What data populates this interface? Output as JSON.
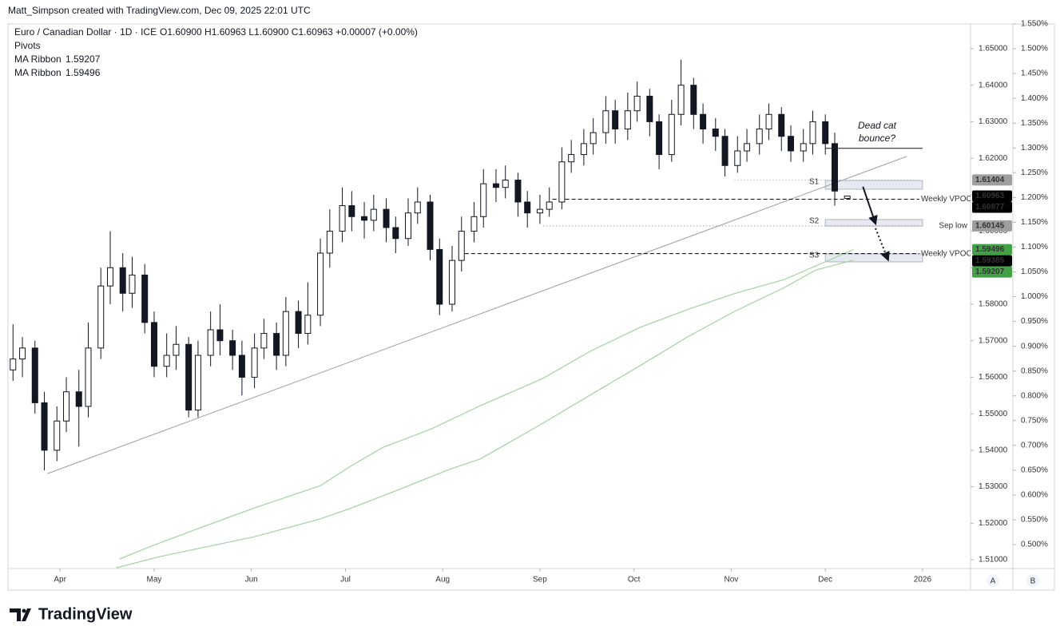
{
  "chart_data": {
    "type": "candlestick",
    "credit": "Matt_Simpson created with TradingView.com, Dec 09, 2025 22:01 UTC",
    "title": "Euro / Canadian Dollar · 1D · ICE",
    "ohlc_text": "O1.60900 H1.60963 L1.60900 C1.60963 +0.00007 (+0.00%)",
    "indicators": [
      "Pivots"
    ],
    "logo": "TradingView",
    "axis_buttons": [
      "A",
      "B"
    ],
    "xlim": [
      74.4,
      381.3
    ],
    "xticks": [
      {
        "value": 91,
        "label": "Apr"
      },
      {
        "value": 121,
        "label": "May"
      },
      {
        "value": 152,
        "label": "Jun"
      },
      {
        "value": 182,
        "label": "Jul"
      },
      {
        "value": 213,
        "label": "Aug"
      },
      {
        "value": 244,
        "label": "Sep"
      },
      {
        "value": 274,
        "label": "Oct"
      },
      {
        "value": 305,
        "label": "Nov"
      },
      {
        "value": 335,
        "label": "Dec"
      },
      {
        "value": 366,
        "label": "2026"
      }
    ],
    "ylim": [
      1.50759,
      1.65678
    ],
    "yticks": [
      {
        "value": 1.51,
        "label": "1.51000"
      },
      {
        "value": 1.52,
        "label": "1.52000"
      },
      {
        "value": 1.53,
        "label": "1.53000"
      },
      {
        "value": 1.54,
        "label": "1.54000"
      },
      {
        "value": 1.55,
        "label": "1.55000"
      },
      {
        "value": 1.56,
        "label": "1.56000"
      },
      {
        "value": 1.57,
        "label": "1.57000"
      },
      {
        "value": 1.58,
        "label": "1.58000"
      },
      {
        "value": 1.59,
        "label": "1.59000"
      },
      {
        "value": 1.6,
        "label": "1.60000"
      },
      {
        "value": 1.61,
        "label": "1.61000"
      },
      {
        "value": 1.62,
        "label": "1.62000"
      },
      {
        "value": 1.63,
        "label": "1.63000"
      },
      {
        "value": 1.64,
        "label": "1.64000"
      },
      {
        "value": 1.65,
        "label": "1.65000"
      }
    ],
    "y2lim": [
      0.4517,
      1.55
    ],
    "y2ticks": [
      {
        "value": 0.5,
        "label": "0.500%"
      },
      {
        "value": 0.55,
        "label": "0.550%"
      },
      {
        "value": 0.6,
        "label": "0.600%"
      },
      {
        "value": 0.65,
        "label": "0.650%"
      },
      {
        "value": 0.7,
        "label": "0.700%"
      },
      {
        "value": 0.75,
        "label": "0.750%"
      },
      {
        "value": 0.8,
        "label": "0.800%"
      },
      {
        "value": 0.85,
        "label": "0.850%"
      },
      {
        "value": 0.9,
        "label": "0.900%"
      },
      {
        "value": 0.95,
        "label": "0.950%"
      },
      {
        "value": 1.0,
        "label": "1.000%"
      },
      {
        "value": 1.05,
        "label": "1.050%"
      },
      {
        "value": 1.1,
        "label": "1.100%"
      },
      {
        "value": 1.15,
        "label": "1.150%"
      },
      {
        "value": 1.2,
        "label": "1.200%"
      },
      {
        "value": 1.25,
        "label": "1.250%"
      },
      {
        "value": 1.3,
        "label": "1.300%"
      },
      {
        "value": 1.35,
        "label": "1.350%"
      },
      {
        "value": 1.4,
        "label": "1.400%"
      },
      {
        "value": 1.45,
        "label": "1.450%"
      },
      {
        "value": 1.5,
        "label": "1.500%"
      },
      {
        "value": 1.55,
        "label": "1.550%"
      }
    ],
    "candles": {
      "x": [
        76,
        79,
        83,
        86,
        90,
        93,
        97,
        100,
        104,
        107,
        111,
        114,
        118,
        121,
        125,
        128,
        132,
        135,
        139,
        142,
        146,
        149,
        153,
        156,
        160,
        163,
        167,
        170,
        174,
        177,
        181,
        184,
        188,
        191,
        195,
        198,
        202,
        205,
        209,
        212,
        216,
        219,
        223,
        226,
        230,
        233,
        237,
        240,
        244,
        247,
        251,
        254,
        258,
        261,
        265,
        268,
        272,
        275,
        279,
        282,
        286,
        289,
        293,
        296,
        300,
        303,
        307,
        310,
        314,
        317,
        321,
        324,
        328,
        331,
        335,
        338,
        342
      ],
      "open": [
        1.562,
        1.565,
        1.568,
        1.553,
        1.54,
        1.548,
        1.556,
        1.552,
        1.568,
        1.585,
        1.59,
        1.583,
        1.588,
        1.575,
        1.563,
        1.566,
        1.569,
        1.551,
        1.566,
        1.573,
        1.57,
        1.566,
        1.56,
        1.568,
        1.572,
        1.566,
        1.578,
        1.572,
        1.577,
        1.594,
        1.6,
        1.607,
        1.604,
        1.603,
        1.606,
        1.601,
        1.598,
        1.605,
        1.608,
        1.595,
        1.58,
        1.592,
        1.6,
        1.604,
        1.613,
        1.612,
        1.614,
        1.608,
        1.605,
        1.606,
        1.608,
        1.619,
        1.621,
        1.624,
        1.627,
        1.633,
        1.628,
        1.633,
        1.637,
        1.63,
        1.621,
        1.632,
        1.64,
        1.632,
        1.628,
        1.626,
        1.618,
        1.622,
        1.624,
        1.628,
        1.632,
        1.626,
        1.622,
        1.624,
        1.63,
        1.624,
        1.609
      ],
      "high": [
        1.5745,
        1.571,
        1.57,
        1.556,
        1.552,
        1.56,
        1.562,
        1.575,
        1.59,
        1.6,
        1.594,
        1.593,
        1.591,
        1.578,
        1.572,
        1.574,
        1.571,
        1.57,
        1.578,
        1.58,
        1.573,
        1.57,
        1.572,
        1.576,
        1.575,
        1.582,
        1.581,
        1.586,
        1.598,
        1.606,
        1.612,
        1.611,
        1.608,
        1.61,
        1.609,
        1.604,
        1.609,
        1.612,
        1.61,
        1.598,
        1.596,
        1.604,
        1.608,
        1.617,
        1.617,
        1.618,
        1.616,
        1.611,
        1.61,
        1.612,
        1.623,
        1.625,
        1.628,
        1.631,
        1.637,
        1.636,
        1.638,
        1.641,
        1.639,
        1.632,
        1.636,
        1.647,
        1.642,
        1.635,
        1.631,
        1.628,
        1.626,
        1.628,
        1.632,
        1.635,
        1.634,
        1.629,
        1.628,
        1.633,
        1.632,
        1.627,
        1.60963
      ],
      "low": [
        1.559,
        1.56,
        1.55,
        1.5345,
        1.537,
        1.545,
        1.541,
        1.549,
        1.565,
        1.58,
        1.578,
        1.579,
        1.572,
        1.56,
        1.56,
        1.562,
        1.549,
        1.549,
        1.563,
        1.566,
        1.562,
        1.555,
        1.557,
        1.565,
        1.562,
        1.563,
        1.568,
        1.569,
        1.574,
        1.59,
        1.597,
        1.6,
        1.598,
        1.6,
        1.597,
        1.594,
        1.596,
        1.602,
        1.592,
        1.577,
        1.578,
        1.589,
        1.597,
        1.601,
        1.608,
        1.609,
        1.604,
        1.601,
        1.602,
        1.604,
        1.606,
        1.616,
        1.618,
        1.621,
        1.624,
        1.624,
        1.625,
        1.63,
        1.626,
        1.617,
        1.619,
        1.629,
        1.628,
        1.624,
        1.622,
        1.615,
        1.616,
        1.619,
        1.621,
        1.625,
        1.622,
        1.619,
        1.619,
        1.621,
        1.621,
        1.607,
        1.609
      ],
      "close": [
        1.565,
        1.568,
        1.553,
        1.54,
        1.548,
        1.556,
        1.552,
        1.568,
        1.585,
        1.59,
        1.583,
        1.588,
        1.575,
        1.563,
        1.566,
        1.569,
        1.551,
        1.566,
        1.573,
        1.57,
        1.566,
        1.56,
        1.568,
        1.572,
        1.566,
        1.578,
        1.572,
        1.577,
        1.594,
        1.6,
        1.607,
        1.604,
        1.603,
        1.606,
        1.601,
        1.598,
        1.605,
        1.608,
        1.595,
        1.58,
        1.592,
        1.6,
        1.604,
        1.613,
        1.612,
        1.614,
        1.608,
        1.605,
        1.606,
        1.608,
        1.619,
        1.621,
        1.624,
        1.627,
        1.633,
        1.628,
        1.633,
        1.637,
        1.63,
        1.621,
        1.632,
        1.64,
        1.632,
        1.628,
        1.626,
        1.618,
        1.622,
        1.624,
        1.628,
        1.632,
        1.626,
        1.622,
        1.624,
        1.63,
        1.624,
        1.611,
        1.60963
      ],
      "tag_color": "#000000"
    },
    "series": [
      {
        "name": "MA Ribbon",
        "color": "#9fd49f",
        "label_color": "#43a047",
        "x": [
          109,
          123,
          153,
          174,
          184,
          199,
          215,
          225,
          245,
          260,
          276,
          291,
          306,
          322,
          332,
          344
        ],
        "values": [
          1.5078,
          1.5109,
          1.5163,
          1.5212,
          1.5242,
          1.5292,
          1.5347,
          1.5376,
          1.5474,
          1.5551,
          1.5632,
          1.571,
          1.578,
          1.5846,
          1.5894,
          1.59207
        ]
      },
      {
        "name": "MA Ribbon",
        "color": "#9fd49f",
        "label_color": "#43a047",
        "x": [
          110,
          120,
          133,
          153,
          174,
          184,
          194,
          209,
          225,
          245,
          260,
          276,
          291,
          306,
          322,
          332,
          344
        ],
        "values": [
          1.5102,
          1.5137,
          1.5179,
          1.5242,
          1.5303,
          1.5358,
          1.5408,
          1.5457,
          1.5522,
          1.5597,
          1.5671,
          1.5737,
          1.5785,
          1.5829,
          1.5868,
          1.5905,
          1.59496
        ]
      }
    ],
    "trendline": {
      "x": [
        87,
        361
      ],
      "y": [
        1.5336,
        1.6205
      ],
      "color": "#9e9e9e"
    },
    "levels": [
      {
        "label": "Weekly VPOC",
        "value": 1.60877,
        "from": 248,
        "to": 365,
        "style": "dashed",
        "color": "#000000",
        "tag_color": "#000000"
      },
      {
        "label": "Weekly VPOC",
        "value": 1.59385,
        "from": 218,
        "to": 365,
        "style": "dashed",
        "color": "#000000",
        "tag_color": "#000000"
      },
      {
        "label": "Sep low",
        "value": 1.60145,
        "from": 245,
        "to": 365,
        "style": "dotted",
        "color": "#9e9e9e",
        "tag_color": "#9e9e9e"
      },
      {
        "value": 1.61404,
        "from": 306,
        "to": 365,
        "style": "dotted",
        "color": "#bdbdbd",
        "tag_color": "#9e9e9e"
      }
    ],
    "pivots": [
      {
        "label": "S1",
        "range": [
          1.6115,
          1.6139
        ]
      },
      {
        "label": "S2",
        "range": [
          1.6014,
          1.6032
        ]
      },
      {
        "label": "S3",
        "range": [
          1.5916,
          1.5938
        ]
      }
    ],
    "pivot_span": [
      335,
      366
    ],
    "annotation": {
      "text": [
        "Dead cat",
        "bounce?"
      ],
      "value": 1.6227,
      "from": 335,
      "to": 366
    },
    "arrows": [
      {
        "x": [
          347,
          351
        ],
        "y": [
          1.6122,
          1.6021
        ],
        "style": "solid"
      },
      {
        "x": [
          351,
          355
        ],
        "y": [
          1.6008,
          1.5922
        ],
        "style": "dotted"
      }
    ]
  }
}
